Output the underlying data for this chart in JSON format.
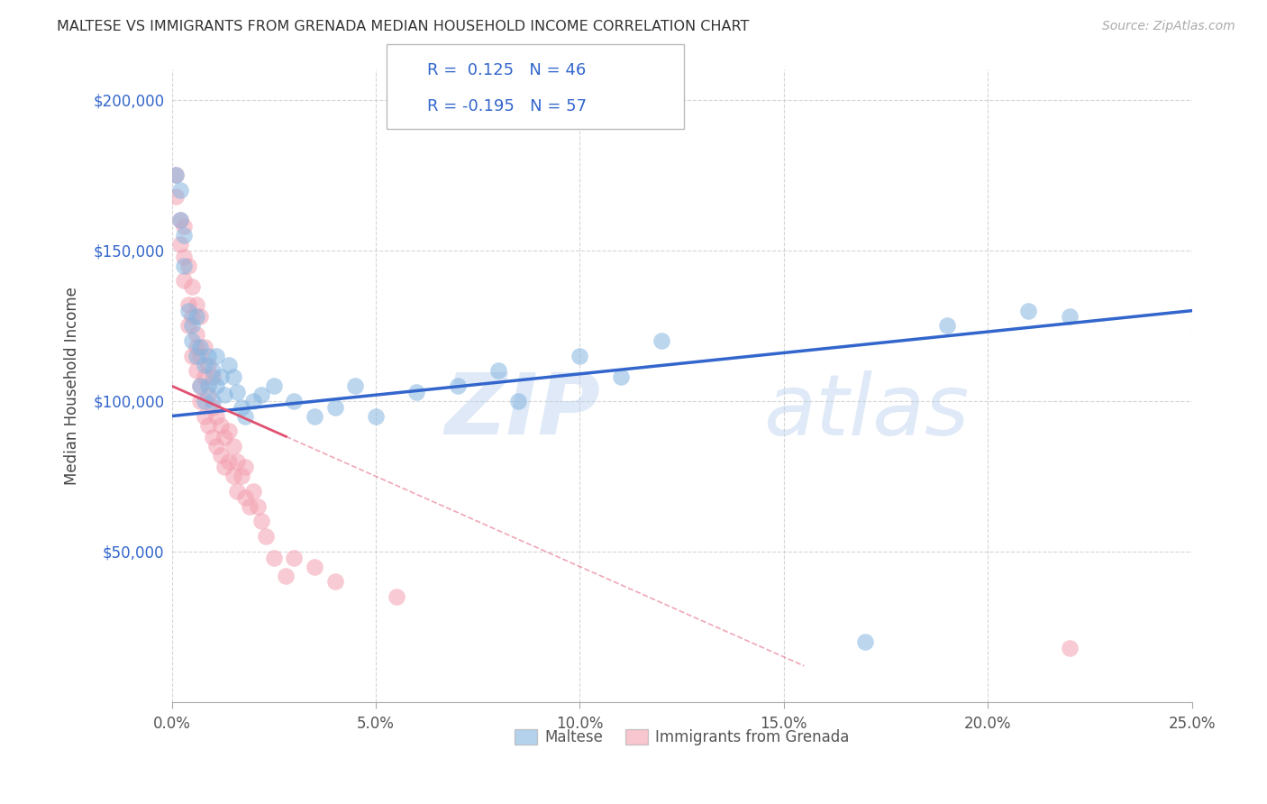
{
  "title": "MALTESE VS IMMIGRANTS FROM GRENADA MEDIAN HOUSEHOLD INCOME CORRELATION CHART",
  "source": "Source: ZipAtlas.com",
  "ylabel": "Median Household Income",
  "xlim": [
    0.0,
    0.25
  ],
  "ylim": [
    0,
    210000
  ],
  "xticks": [
    0.0,
    0.05,
    0.1,
    0.15,
    0.2,
    0.25
  ],
  "xticklabels": [
    "0.0%",
    "5.0%",
    "10.0%",
    "15.0%",
    "20.0%",
    "25.0%"
  ],
  "yticks": [
    0,
    50000,
    100000,
    150000,
    200000
  ],
  "yticklabels": [
    "",
    "$50,000",
    "$100,000",
    "$150,000",
    "$200,000"
  ],
  "maltese_R": 0.125,
  "maltese_N": 46,
  "grenada_R": -0.195,
  "grenada_N": 57,
  "blue_color": "#85B5E0",
  "pink_color": "#F4A0B0",
  "blue_line_color": "#3366CC",
  "pink_line_color": "#E05070",
  "ytick_color": "#3366CC",
  "watermark": "ZIPatlas",
  "watermark_zip": "ZIP",
  "watermark_atlas": "atlas",
  "legend_labels": [
    "Maltese",
    "Immigrants from Grenada"
  ],
  "background_color": "#FFFFFF",
  "grid_color": "#CCCCCC",
  "maltese_x": [
    0.001,
    0.002,
    0.002,
    0.003,
    0.003,
    0.004,
    0.005,
    0.005,
    0.006,
    0.006,
    0.007,
    0.007,
    0.008,
    0.008,
    0.009,
    0.009,
    0.01,
    0.01,
    0.011,
    0.011,
    0.012,
    0.013,
    0.014,
    0.015,
    0.016,
    0.017,
    0.018,
    0.02,
    0.022,
    0.025,
    0.03,
    0.035,
    0.04,
    0.045,
    0.05,
    0.06,
    0.07,
    0.08,
    0.085,
    0.1,
    0.11,
    0.12,
    0.17,
    0.19,
    0.21,
    0.22
  ],
  "maltese_y": [
    175000,
    170000,
    160000,
    155000,
    145000,
    130000,
    125000,
    120000,
    115000,
    128000,
    105000,
    118000,
    100000,
    112000,
    105000,
    115000,
    100000,
    110000,
    105000,
    115000,
    108000,
    102000,
    112000,
    108000,
    103000,
    98000,
    95000,
    100000,
    102000,
    105000,
    100000,
    95000,
    98000,
    105000,
    95000,
    103000,
    105000,
    110000,
    100000,
    115000,
    108000,
    120000,
    20000,
    125000,
    130000,
    128000
  ],
  "grenada_x": [
    0.001,
    0.001,
    0.002,
    0.002,
    0.003,
    0.003,
    0.003,
    0.004,
    0.004,
    0.004,
    0.005,
    0.005,
    0.005,
    0.006,
    0.006,
    0.006,
    0.006,
    0.007,
    0.007,
    0.007,
    0.007,
    0.008,
    0.008,
    0.008,
    0.009,
    0.009,
    0.009,
    0.01,
    0.01,
    0.01,
    0.011,
    0.011,
    0.012,
    0.012,
    0.013,
    0.013,
    0.014,
    0.014,
    0.015,
    0.015,
    0.016,
    0.016,
    0.017,
    0.018,
    0.018,
    0.019,
    0.02,
    0.021,
    0.022,
    0.023,
    0.025,
    0.028,
    0.03,
    0.035,
    0.04,
    0.055,
    0.22
  ],
  "grenada_y": [
    175000,
    168000,
    160000,
    152000,
    148000,
    158000,
    140000,
    132000,
    145000,
    125000,
    115000,
    128000,
    138000,
    110000,
    122000,
    132000,
    118000,
    105000,
    115000,
    128000,
    100000,
    95000,
    108000,
    118000,
    92000,
    102000,
    112000,
    88000,
    98000,
    108000,
    85000,
    95000,
    82000,
    92000,
    78000,
    88000,
    80000,
    90000,
    75000,
    85000,
    70000,
    80000,
    75000,
    68000,
    78000,
    65000,
    70000,
    65000,
    60000,
    55000,
    48000,
    42000,
    48000,
    45000,
    40000,
    35000,
    18000
  ]
}
